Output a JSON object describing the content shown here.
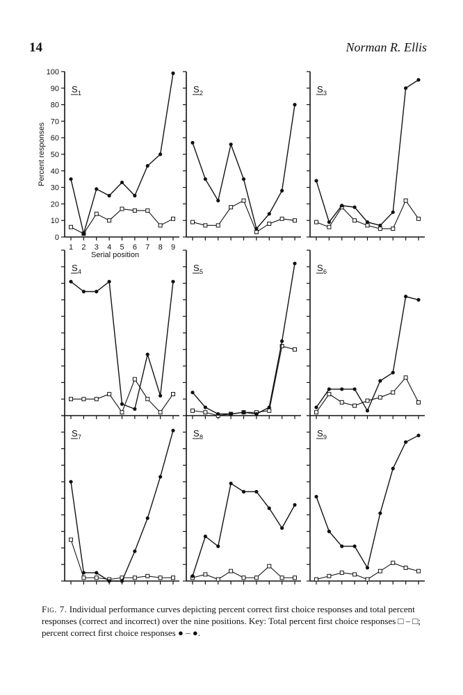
{
  "header": {
    "page_number": "14",
    "author": "Norman R. Ellis"
  },
  "chart_data": {
    "type": "line",
    "layout": "3x3 small multiples",
    "x": [
      1,
      2,
      3,
      4,
      5,
      6,
      7,
      8,
      9
    ],
    "xlabel": "Serial position",
    "ylabel": "Percent responses",
    "ylim": [
      0,
      100
    ],
    "yticks": [
      0,
      10,
      20,
      30,
      40,
      50,
      60,
      70,
      80,
      90,
      100
    ],
    "xticks": [
      "1",
      "2",
      "3",
      "4",
      "5",
      "6",
      "7",
      "8",
      "9"
    ],
    "grid": false,
    "legend": "in caption",
    "markers": {
      "correct": "filled-circle",
      "total": "open-square"
    },
    "panels": [
      {
        "label_main": "S",
        "label_sub": "1",
        "correct": [
          35,
          2,
          29,
          25,
          33,
          25,
          43,
          50,
          99
        ],
        "total": [
          6,
          2,
          14,
          10,
          17,
          16,
          16,
          7,
          11
        ]
      },
      {
        "label_main": "S",
        "label_sub": "2",
        "correct": [
          57,
          35,
          22,
          56,
          35,
          5,
          14,
          28,
          80
        ],
        "total": [
          9,
          7,
          7,
          18,
          22,
          3,
          8,
          11,
          10
        ]
      },
      {
        "label_main": "S",
        "label_sub": "3",
        "correct": [
          34,
          9,
          19,
          18,
          9,
          7,
          15,
          90,
          95
        ],
        "total": [
          9,
          6,
          18,
          10,
          7,
          5,
          5,
          22,
          11
        ]
      },
      {
        "label_main": "S",
        "label_sub": "4",
        "correct": [
          81,
          75,
          75,
          81,
          7,
          4,
          37,
          12,
          81
        ],
        "total": [
          10,
          10,
          10,
          13,
          2,
          22,
          10,
          2,
          13
        ]
      },
      {
        "label_main": "S",
        "label_sub": "5",
        "correct": [
          14,
          5,
          1,
          1,
          2,
          1,
          5,
          45,
          92
        ],
        "total": [
          3,
          2,
          0,
          1,
          2,
          2,
          3,
          42,
          40
        ]
      },
      {
        "label_main": "S",
        "label_sub": "6",
        "correct": [
          5,
          16,
          16,
          16,
          3,
          21,
          26,
          72,
          70
        ],
        "total": [
          2,
          13,
          8,
          6,
          9,
          11,
          14,
          23,
          8
        ]
      },
      {
        "label_main": "S",
        "label_sub": "7",
        "correct": [
          60,
          5,
          5,
          0,
          0,
          18,
          38,
          63,
          91
        ],
        "total": [
          25,
          2,
          2,
          1,
          2,
          2,
          3,
          2,
          2
        ]
      },
      {
        "label_main": "S",
        "label_sub": "8",
        "correct": [
          3,
          27,
          21,
          59,
          54,
          54,
          44,
          32,
          46
        ],
        "total": [
          2,
          4,
          1,
          6,
          2,
          2,
          9,
          2,
          2
        ]
      },
      {
        "label_main": "S",
        "label_sub": "9",
        "correct": [
          51,
          30,
          21,
          21,
          8,
          41,
          68,
          84,
          88
        ],
        "total": [
          1,
          3,
          5,
          4,
          1,
          6,
          11,
          8,
          6
        ]
      }
    ]
  },
  "caption": {
    "fig_label": "Fig. 7.",
    "text": "Individual performance curves depicting percent correct first choice responses and total percent responses (correct and incorrect) over the nine positions. Key: Total percent first choice responses ",
    "key_total": "□ – □",
    "text_mid": "; percent correct first choice responses ",
    "key_correct": "● – ●",
    "text_end": "."
  }
}
